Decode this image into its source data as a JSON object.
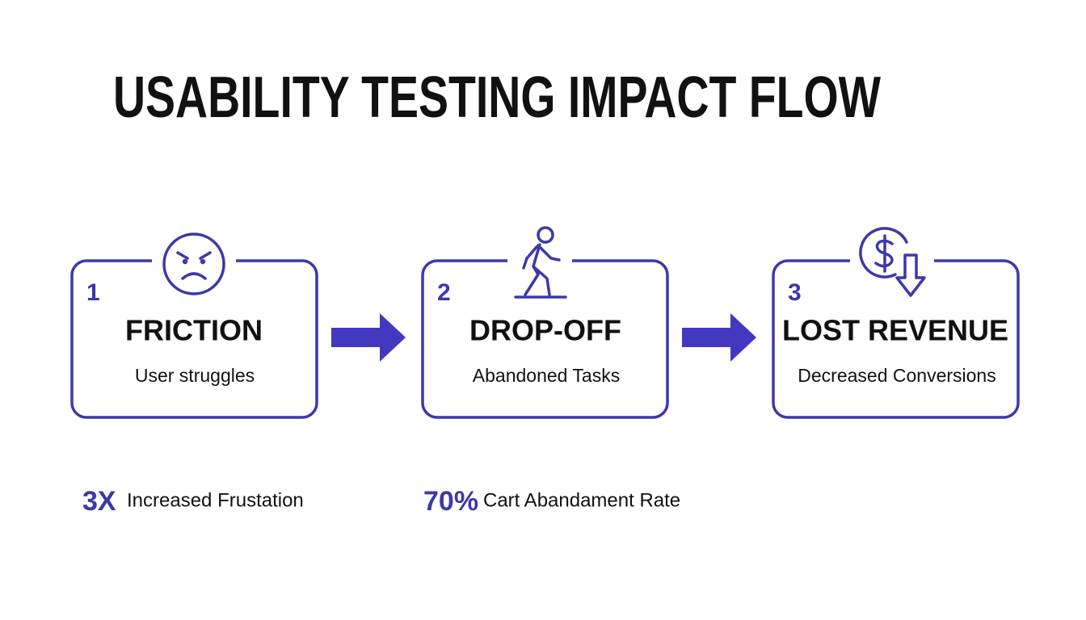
{
  "title": "USABILITY TESTING IMPACT FLOW",
  "steps": [
    {
      "number": "1",
      "title": "FRICTION",
      "subtitle": "User struggles"
    },
    {
      "number": "2",
      "title": "DROP-OFF",
      "subtitle": "Abandoned Tasks"
    },
    {
      "number": "3",
      "title": "LOST REVENUE",
      "subtitle": "Decreased Conversions"
    }
  ],
  "stats": [
    {
      "value": "3X",
      "label": "Increased Frustation"
    },
    {
      "value": "70%",
      "label": "Cart Abandament Rate"
    }
  ]
}
